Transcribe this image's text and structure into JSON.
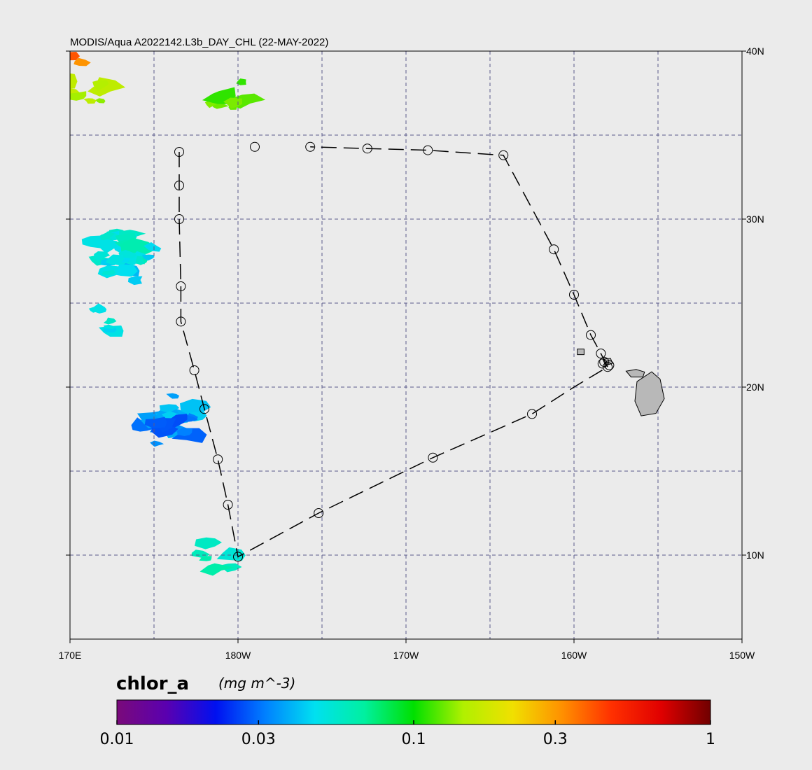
{
  "title": "MODIS/Aqua A2022142.L3b_DAY_CHL (22-MAY-2022)",
  "lon_ticks": [
    {
      "lon": 170,
      "label": "170E"
    },
    {
      "lon": 180,
      "label": "180W"
    },
    {
      "lon": 190,
      "label": "170W"
    },
    {
      "lon": 200,
      "label": "160W"
    },
    {
      "lon": 210,
      "label": "150W"
    }
  ],
  "lat_ticks": [
    {
      "lat": 10,
      "label": "10N"
    },
    {
      "lat": 20,
      "label": "20N"
    },
    {
      "lat": 30,
      "label": "30N"
    },
    {
      "lat": 40,
      "label": "40N"
    }
  ],
  "extent": {
    "lon_min": 170,
    "lon_max": 210,
    "lat_min": 5,
    "lat_max": 40
  },
  "grid_lons": [
    175,
    180,
    185,
    190,
    195,
    200,
    205
  ],
  "grid_lats": [
    10,
    15,
    20,
    25,
    30,
    35
  ],
  "track_points": [
    [
      176.5,
      34.0
    ],
    [
      176.5,
      32.0
    ],
    [
      176.5,
      30.0
    ],
    [
      176.6,
      26.0
    ],
    [
      176.6,
      23.9
    ],
    [
      177.4,
      21.0
    ],
    [
      178.0,
      18.7
    ],
    [
      178.8,
      15.7
    ],
    [
      179.4,
      13.0
    ],
    [
      180.0,
      9.9
    ],
    [
      184.8,
      12.5
    ],
    [
      191.6,
      15.8
    ],
    [
      197.5,
      18.4
    ],
    [
      200.0,
      20.0
    ],
    [
      202.0,
      21.2
    ]
  ],
  "track_closing": [
    [
      202.0,
      21.2
    ],
    [
      201.8,
      21.6
    ],
    [
      201.6,
      22.0
    ],
    [
      201.0,
      23.1
    ],
    [
      200.0,
      25.5
    ],
    [
      198.8,
      28.2
    ],
    [
      195.8,
      33.8
    ],
    [
      191.3,
      34.1
    ],
    [
      187.7,
      34.2
    ],
    [
      184.3,
      34.3
    ]
  ],
  "stations": [
    [
      176.5,
      34.0
    ],
    [
      176.5,
      32.0
    ],
    [
      176.5,
      30.0
    ],
    [
      176.6,
      26.0
    ],
    [
      176.6,
      23.9
    ],
    [
      177.4,
      21.0
    ],
    [
      178.0,
      18.7
    ],
    [
      178.8,
      15.7
    ],
    [
      179.4,
      13.0
    ],
    [
      180.0,
      9.9
    ],
    [
      184.8,
      12.5
    ],
    [
      191.6,
      15.8
    ],
    [
      197.5,
      18.4
    ],
    [
      202.0,
      21.2
    ],
    [
      201.8,
      21.5
    ],
    [
      201.7,
      21.4
    ],
    [
      202.1,
      21.3
    ],
    [
      201.6,
      22.0
    ],
    [
      201.0,
      23.1
    ],
    [
      200.0,
      25.5
    ],
    [
      198.8,
      28.2
    ],
    [
      195.8,
      33.8
    ],
    [
      191.3,
      34.1
    ],
    [
      187.7,
      34.2
    ],
    [
      184.3,
      34.3
    ],
    [
      181.0,
      34.3
    ]
  ],
  "colorbar": {
    "variable": "chlor_a",
    "units": "(mg m^-3)",
    "scale": "log",
    "min": 0.01,
    "max": 1,
    "ticks": [
      {
        "value": 0.01,
        "label": "0.01"
      },
      {
        "value": 0.03,
        "label": "0.03"
      },
      {
        "value": 0.1,
        "label": "0.1"
      },
      {
        "value": 0.3,
        "label": "0.3"
      },
      {
        "value": 1,
        "label": "1"
      }
    ],
    "colors": [
      "#7a0a7a",
      "#5a00b0",
      "#0010f0",
      "#0080ff",
      "#00e0f0",
      "#00f0a0",
      "#00e000",
      "#b0f000",
      "#f0e000",
      "#ff9000",
      "#ff3000",
      "#e00000",
      "#700000"
    ]
  },
  "chl_patches": [
    {
      "lon": 172.5,
      "lat": 28.5,
      "value": 0.05
    },
    {
      "lon": 173.6,
      "lat": 28.2,
      "value": 0.055
    },
    {
      "lon": 174.0,
      "lat": 27.6,
      "value": 0.045
    },
    {
      "lon": 172.8,
      "lat": 27.0,
      "value": 0.05
    },
    {
      "lon": 172.5,
      "lat": 24.0,
      "value": 0.05
    },
    {
      "lon": 175.5,
      "lat": 18.0,
      "value": 0.035
    },
    {
      "lon": 177.0,
      "lat": 18.9,
      "value": 0.04
    },
    {
      "lon": 176.0,
      "lat": 17.4,
      "value": 0.03
    },
    {
      "lon": 178.8,
      "lat": 10.0,
      "value": 0.06
    },
    {
      "lon": 170.8,
      "lat": 37.8,
      "value": 0.15
    },
    {
      "lon": 179.6,
      "lat": 37.5,
      "value": 0.12
    },
    {
      "lon": 171.2,
      "lat": 40.0,
      "value": 0.35
    }
  ],
  "islands": [
    {
      "name_icon": "hawaii-big-island",
      "lon": 204.5,
      "lat": 19.6
    },
    {
      "name_icon": "maui",
      "lon": 203.7,
      "lat": 20.8
    },
    {
      "name_icon": "oahu",
      "lon": 202.0,
      "lat": 21.5
    },
    {
      "name_icon": "kauai",
      "lon": 200.4,
      "lat": 22.1
    }
  ]
}
